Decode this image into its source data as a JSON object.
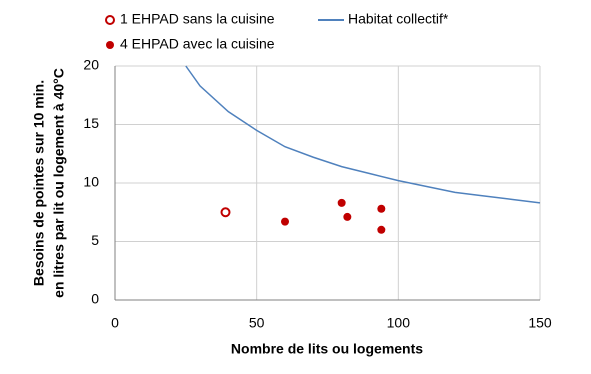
{
  "chart_data": {
    "type": "scatter",
    "x_label": "Nombre de lits ou logements",
    "y_label": [
      "Besoins de pointes sur 10 min.",
      "en litres par lit ou logement à 40°C"
    ],
    "xlim": [
      0,
      150
    ],
    "xticks": [
      0,
      50,
      100,
      150
    ],
    "ylim": [
      0,
      20
    ],
    "yticks": [
      0,
      5,
      10,
      15,
      20
    ],
    "grid": true,
    "series": [
      {
        "name": "1 EHPAD sans la cuisine",
        "kind": "open-marker",
        "color": "#c00000",
        "x": [
          39
        ],
        "values": [
          7.5
        ]
      },
      {
        "name": "4 EHPAD avec la cuisine",
        "kind": "filled-marker",
        "color": "#c00000",
        "x": [
          60,
          80,
          82,
          94,
          94
        ],
        "values": [
          6.7,
          8.3,
          7.1,
          7.8,
          6.0
        ]
      },
      {
        "name": "Habitat collectif*",
        "kind": "line",
        "color": "#4f81bd",
        "x": [
          25,
          30,
          40,
          50,
          60,
          70,
          80,
          90,
          100,
          110,
          120,
          130,
          140,
          150
        ],
        "values": [
          20,
          18.3,
          16.1,
          14.5,
          13.1,
          12.2,
          11.4,
          10.8,
          10.2,
          9.7,
          9.2,
          8.9,
          8.6,
          8.3
        ]
      }
    ]
  }
}
